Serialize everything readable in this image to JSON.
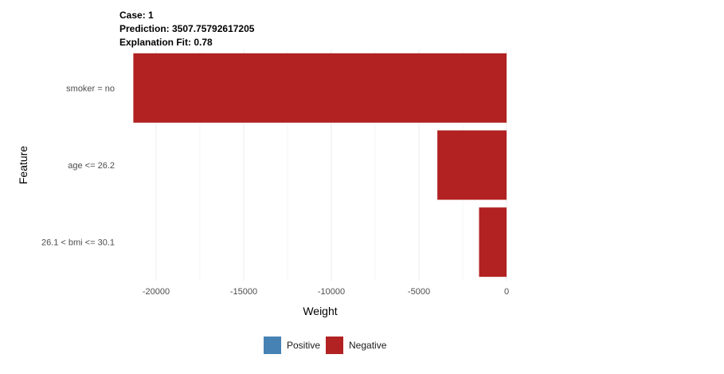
{
  "chart_data": {
    "type": "bar",
    "orientation": "horizontal",
    "title_lines": [
      "Case: 1",
      "Prediction: 3507.75792617205",
      "Explanation Fit: 0.78"
    ],
    "xlabel": "Weight",
    "ylabel": "Feature",
    "categories": [
      "smoker = no",
      "age <= 26.2",
      "26.1 < bmi <= 30.1"
    ],
    "values": [
      -21300,
      -3950,
      -1570
    ],
    "xlim": [
      -22000,
      0
    ],
    "xticks": [
      -20000,
      -15000,
      -10000,
      -5000,
      0
    ],
    "xtick_labels": [
      "-20000",
      "-15000",
      "-10000",
      "-5000",
      "0"
    ],
    "grid": true,
    "legend": {
      "placement": "bottom",
      "items": [
        {
          "label": "Positive",
          "color": "#4682b4"
        },
        {
          "label": "Negative",
          "color": "#b22222"
        }
      ]
    }
  }
}
